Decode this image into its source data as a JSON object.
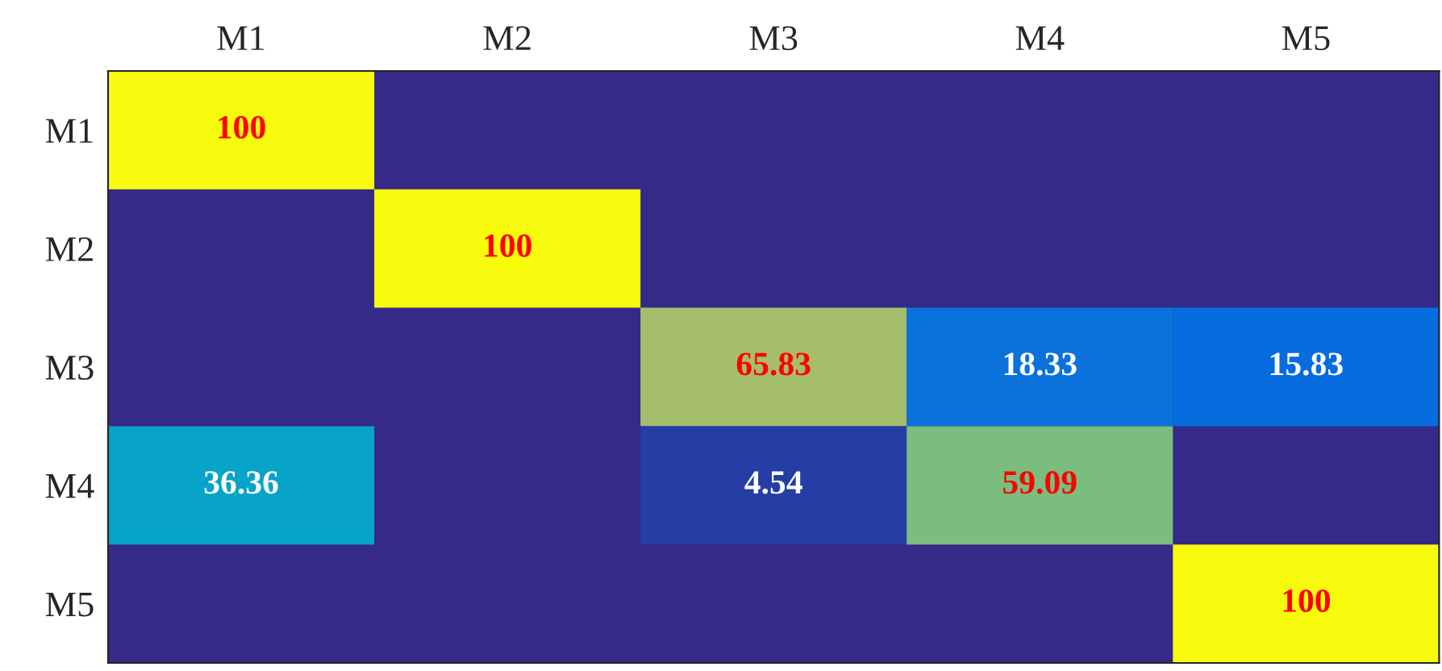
{
  "chart_data": {
    "type": "heatmap",
    "categories": [
      "M1",
      "M2",
      "M3",
      "M4",
      "M5"
    ],
    "y_categories": [
      "M1",
      "M2",
      "M3",
      "M4",
      "M5"
    ],
    "cells": [
      [
        100,
        null,
        null,
        null,
        null
      ],
      [
        null,
        100,
        null,
        null,
        null
      ],
      [
        null,
        null,
        65.83,
        18.33,
        15.83
      ],
      [
        36.36,
        null,
        4.54,
        59.09,
        null
      ],
      [
        null,
        null,
        null,
        null,
        100
      ]
    ],
    "cell_labels": [
      [
        "100",
        null,
        null,
        null,
        null
      ],
      [
        null,
        "100",
        null,
        null,
        null
      ],
      [
        null,
        null,
        "65.83",
        "18.33",
        "15.83"
      ],
      [
        "36.36",
        null,
        "4.54",
        "59.09",
        null
      ],
      [
        null,
        null,
        null,
        null,
        "100"
      ]
    ]
  }
}
